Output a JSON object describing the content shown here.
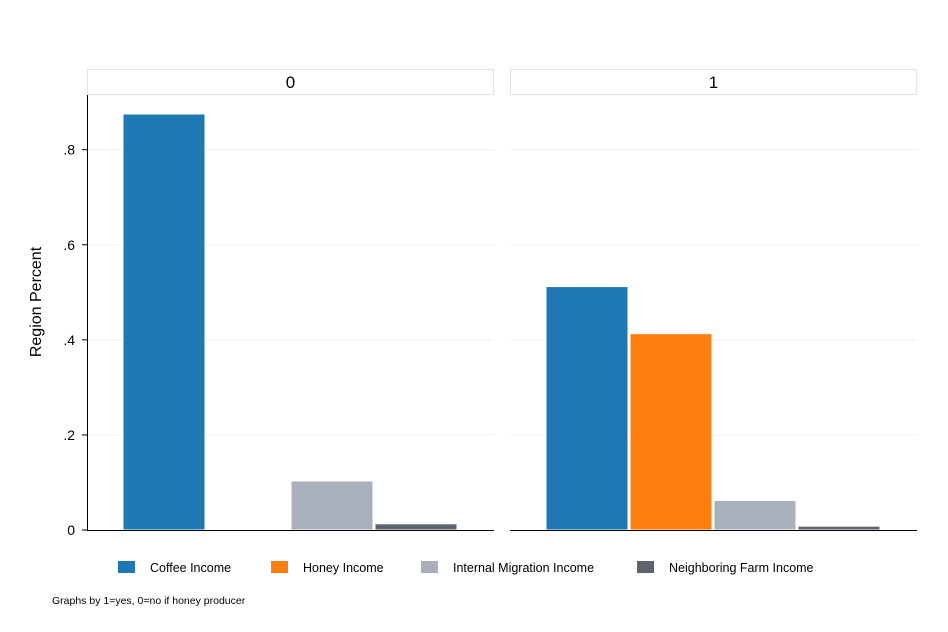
{
  "chart_data": {
    "type": "bar",
    "ylabel": "Region Percent",
    "ylim": [
      0,
      0.9
    ],
    "yticks": [
      {
        "value": 0,
        "label": "0"
      },
      {
        "value": 0.2,
        "label": ".2"
      },
      {
        "value": 0.4,
        "label": ".4"
      },
      {
        "value": 0.6,
        "label": ".6"
      },
      {
        "value": 0.8,
        "label": ".8"
      }
    ],
    "grid": true,
    "legend_position": "bottom",
    "note": "Graphs by 1=yes, 0=no if honey producer",
    "series": [
      {
        "name": "Coffee Income",
        "color": "#1f77b4"
      },
      {
        "name": "Honey Income",
        "color": "#ff7f0e"
      },
      {
        "name": "Internal Migration Income",
        "color": "#a9afbb"
      },
      {
        "name": "Neighboring Farm Income",
        "color": "#5d636d"
      }
    ],
    "panels": [
      {
        "title": "0",
        "values": [
          0.875,
          0.0,
          0.103,
          0.013
        ]
      },
      {
        "title": "1",
        "values": [
          0.512,
          0.413,
          0.062,
          0.008
        ]
      }
    ]
  }
}
